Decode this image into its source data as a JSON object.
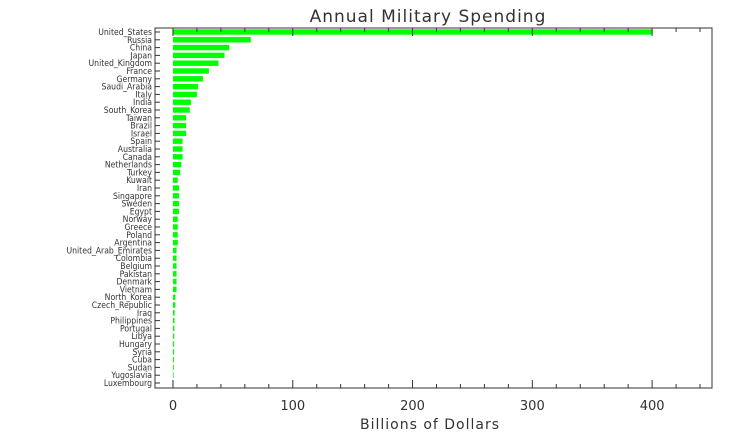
{
  "chart_data": {
    "type": "bar",
    "orientation": "horizontal",
    "title": "Annual Military Spending",
    "xlabel": "Billions of Dollars",
    "ylabel": "",
    "xlim": [
      -15,
      450
    ],
    "xticks": [
      0,
      100,
      200,
      300,
      400
    ],
    "grid": false,
    "legend": "none",
    "bar_color": "#00ff00",
    "categories": [
      "United_States",
      "Russia",
      "China",
      "Japan",
      "United_Kingdom",
      "France",
      "Germany",
      "Saudi_Arabia",
      "Italy",
      "India",
      "South_Korea",
      "Taiwan",
      "Brazil",
      "Israel",
      "Spain",
      "Australia",
      "Canada",
      "Netherlands",
      "Turkey",
      "Kuwait",
      "Iran",
      "Singapore",
      "Sweden",
      "Egypt",
      "Norway",
      "Greece",
      "Poland",
      "Argentina",
      "United_Arab_Emirates",
      "Colombia",
      "Belgium",
      "Pakistan",
      "Denmark",
      "Vietnam",
      "North_Korea",
      "Czech_Republic",
      "Iraq",
      "Philippines",
      "Portugal",
      "Libya",
      "Hungary",
      "Syria",
      "Cuba",
      "Sudan",
      "Yugoslavia",
      "Luxembourg"
    ],
    "values": [
      400,
      65,
      47,
      43,
      38,
      30,
      25,
      21,
      20,
      15,
      14,
      11,
      11,
      11,
      8,
      8,
      8,
      7,
      6,
      4,
      5,
      5,
      5,
      5,
      4,
      4,
      4,
      4,
      3,
      3,
      3,
      3,
      3,
      3,
      2,
      2,
      1.4,
      1.3,
      1.2,
      1.1,
      1,
      1,
      0.9,
      0.7,
      0.6,
      0.3
    ]
  }
}
